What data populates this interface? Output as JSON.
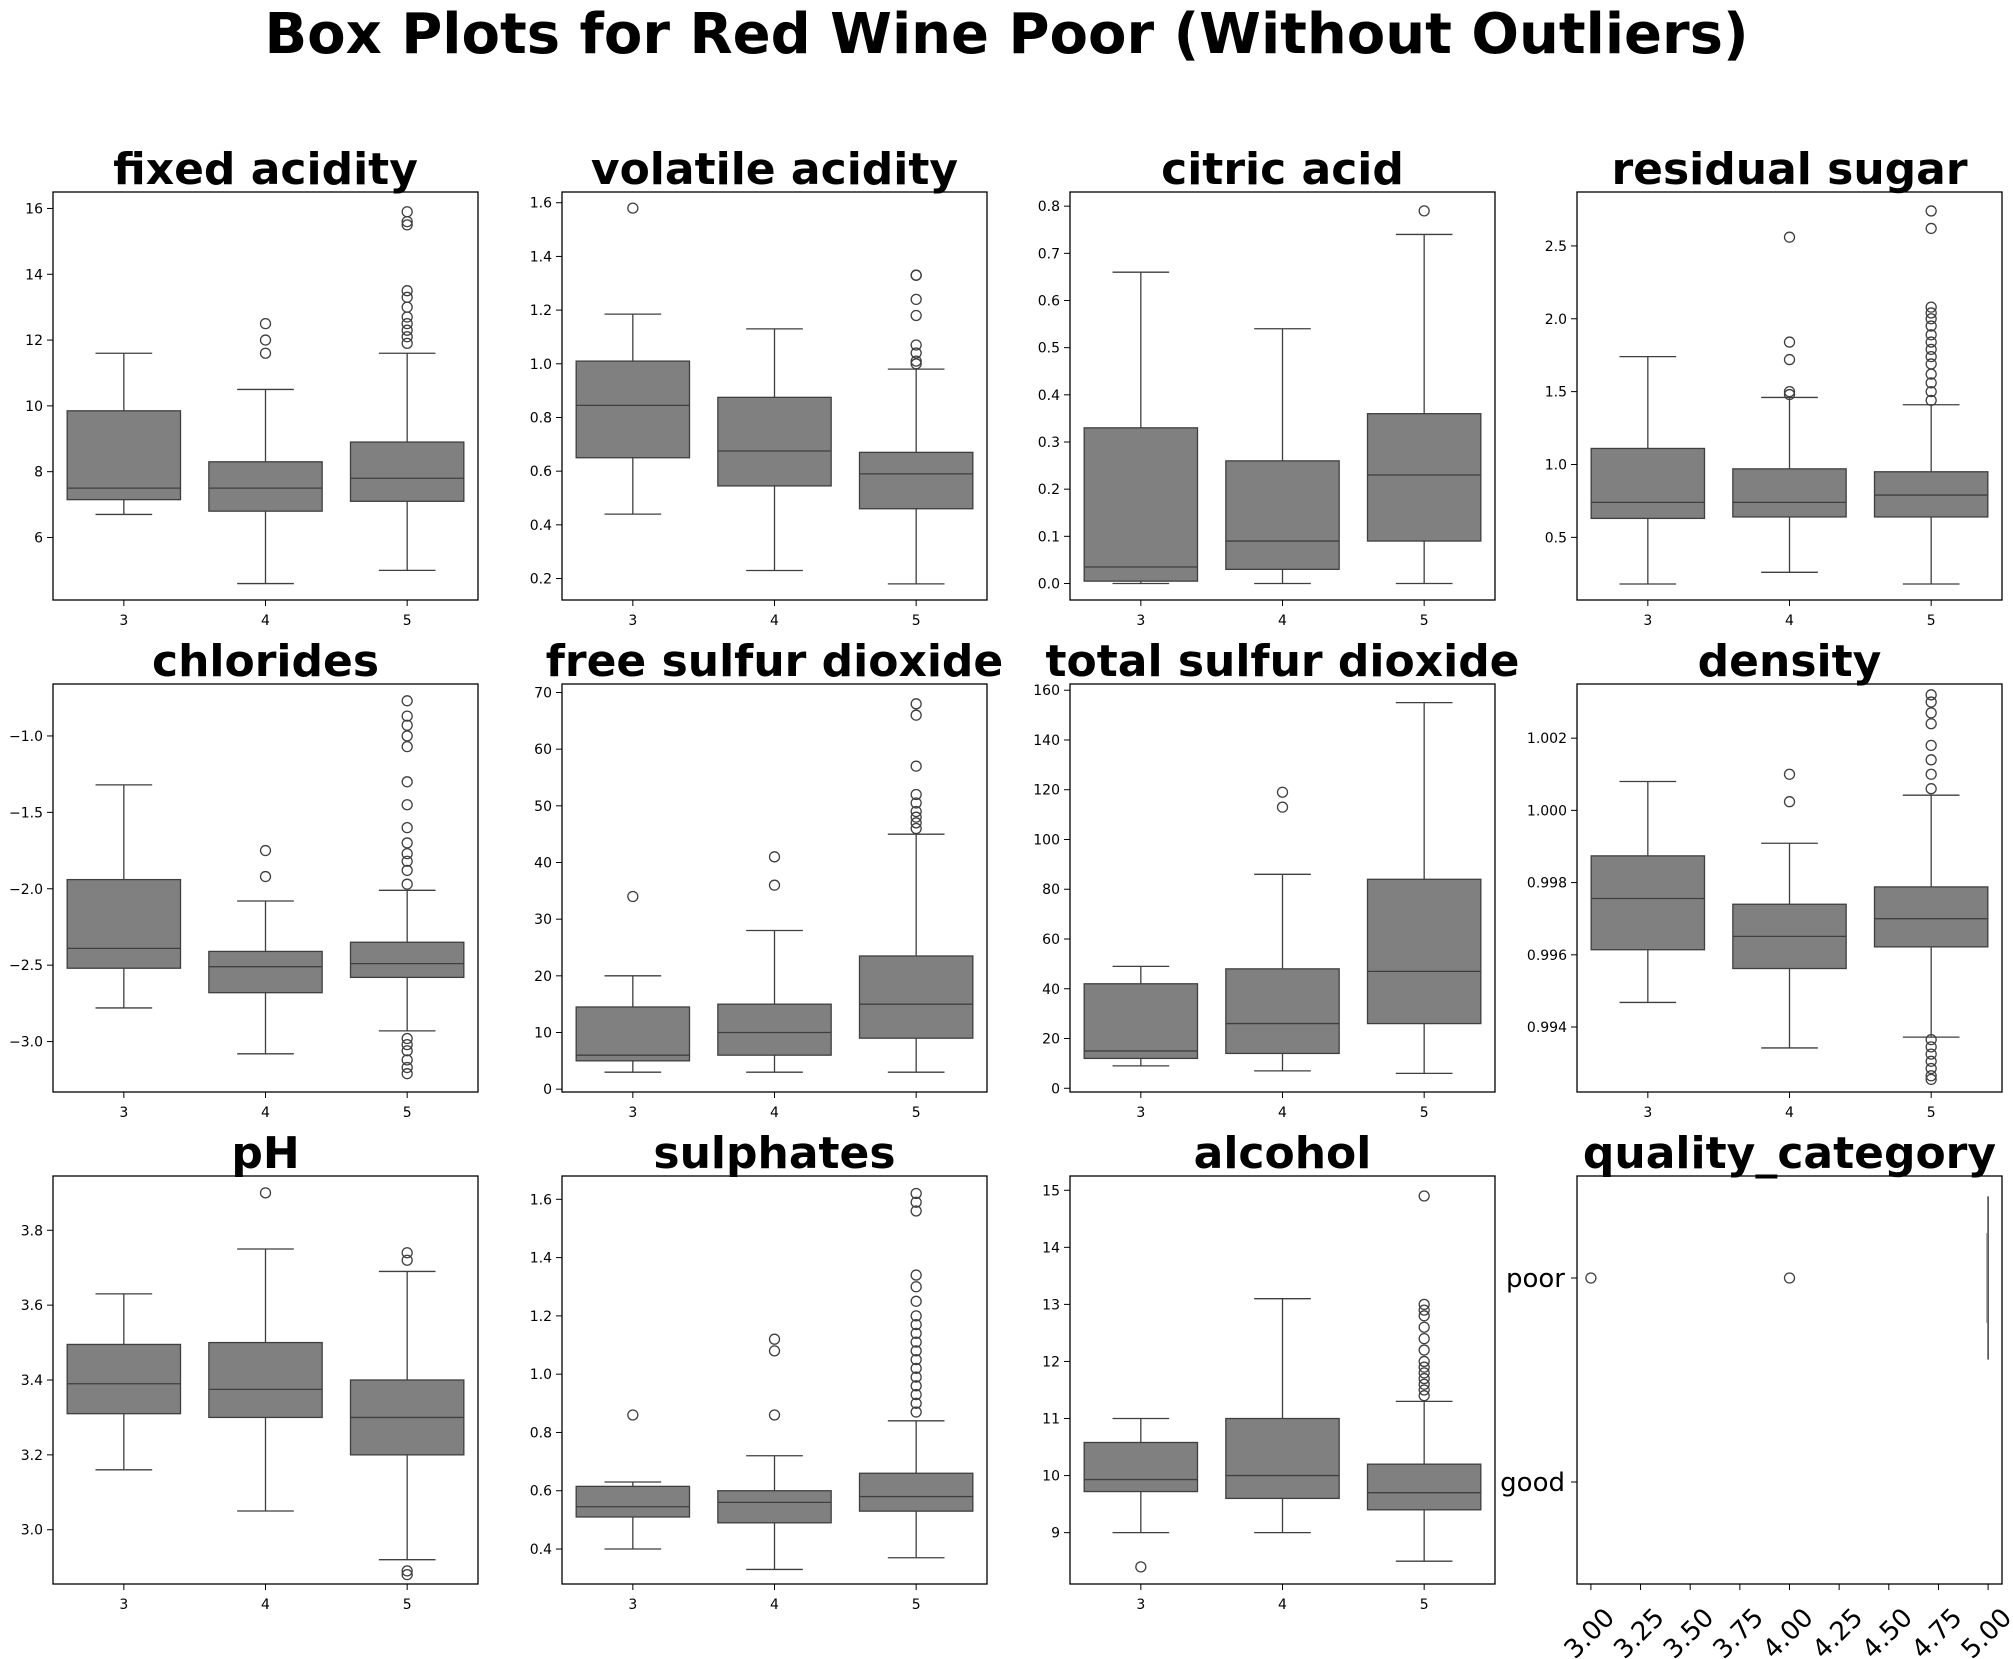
{
  "suptitle": "Box Plots for Red Wine Poor (Without Outliers)",
  "box_color": "#808080",
  "chart_data": [
    {
      "type": "box",
      "title": "fixed acidity",
      "categories": [
        "3",
        "4",
        "5"
      ],
      "ylim": [
        4.1,
        16.5
      ],
      "yticks": [
        6,
        8,
        10,
        12,
        14,
        16
      ],
      "yticklabels": [
        "6",
        "8",
        "10",
        "12",
        "14",
        "16"
      ],
      "boxes": [
        {
          "whislo": 6.7,
          "q1": 7.15,
          "med": 7.5,
          "q3": 9.85,
          "whishi": 11.6,
          "fliers": []
        },
        {
          "whislo": 4.6,
          "q1": 6.8,
          "med": 7.5,
          "q3": 8.3,
          "whishi": 10.5,
          "fliers": [
            11.6,
            12.0,
            12.5
          ]
        },
        {
          "whislo": 5.0,
          "q1": 7.1,
          "med": 7.8,
          "q3": 8.9,
          "whishi": 11.6,
          "fliers": [
            11.9,
            12.1,
            12.3,
            12.5,
            12.7,
            13.0,
            13.3,
            13.5,
            15.5,
            15.6,
            15.9
          ]
        }
      ]
    },
    {
      "type": "box",
      "title": "volatile acidity",
      "categories": [
        "3",
        "4",
        "5"
      ],
      "ylim": [
        0.12,
        1.64
      ],
      "yticks": [
        0.2,
        0.4,
        0.6,
        0.8,
        1.0,
        1.2,
        1.4,
        1.6
      ],
      "yticklabels": [
        "0.2",
        "0.4",
        "0.6",
        "0.8",
        "1.0",
        "1.2",
        "1.4",
        "1.6"
      ],
      "boxes": [
        {
          "whislo": 0.44,
          "q1": 0.65,
          "med": 0.845,
          "q3": 1.01,
          "whishi": 1.185,
          "fliers": [
            1.58
          ]
        },
        {
          "whislo": 0.23,
          "q1": 0.545,
          "med": 0.675,
          "q3": 0.875,
          "whishi": 1.13,
          "fliers": []
        },
        {
          "whislo": 0.18,
          "q1": 0.46,
          "med": 0.59,
          "q3": 0.67,
          "whishi": 0.98,
          "fliers": [
            1.0,
            1.01,
            1.04,
            1.07,
            1.18,
            1.24,
            1.33,
            1.33
          ]
        }
      ]
    },
    {
      "type": "box",
      "title": "citric acid",
      "categories": [
        "3",
        "4",
        "5"
      ],
      "ylim": [
        -0.035,
        0.83
      ],
      "yticks": [
        0.0,
        0.1,
        0.2,
        0.3,
        0.4,
        0.5,
        0.6,
        0.7,
        0.8
      ],
      "yticklabels": [
        "0.0",
        "0.1",
        "0.2",
        "0.3",
        "0.4",
        "0.5",
        "0.6",
        "0.7",
        "0.8"
      ],
      "boxes": [
        {
          "whislo": 0.0,
          "q1": 0.005,
          "med": 0.035,
          "q3": 0.33,
          "whishi": 0.66,
          "fliers": []
        },
        {
          "whislo": 0.0,
          "q1": 0.03,
          "med": 0.09,
          "q3": 0.26,
          "whishi": 0.54,
          "fliers": []
        },
        {
          "whislo": 0.0,
          "q1": 0.09,
          "med": 0.23,
          "q3": 0.36,
          "whishi": 0.74,
          "fliers": [
            0.79
          ]
        }
      ]
    },
    {
      "type": "box",
      "title": "residual sugar",
      "categories": [
        "3",
        "4",
        "5"
      ],
      "ylim": [
        0.07,
        2.87
      ],
      "yticks": [
        0.5,
        1.0,
        1.5,
        2.0,
        2.5
      ],
      "yticklabels": [
        "0.5",
        "1.0",
        "1.5",
        "2.0",
        "2.5"
      ],
      "boxes": [
        {
          "whislo": 0.18,
          "q1": 0.63,
          "med": 0.74,
          "q3": 1.11,
          "whishi": 1.74,
          "fliers": []
        },
        {
          "whislo": 0.26,
          "q1": 0.64,
          "med": 0.74,
          "q3": 0.97,
          "whishi": 1.46,
          "fliers": [
            1.48,
            1.5,
            1.72,
            1.84,
            2.56
          ]
        },
        {
          "whislo": 0.18,
          "q1": 0.64,
          "med": 0.79,
          "q3": 0.95,
          "whishi": 1.41,
          "fliers": [
            1.44,
            1.5,
            1.56,
            1.62,
            1.69,
            1.74,
            1.79,
            1.84,
            1.89,
            1.95,
            2.0,
            2.04,
            2.08,
            2.62,
            2.74
          ]
        }
      ]
    },
    {
      "type": "box",
      "title": "chlorides",
      "categories": [
        "3",
        "4",
        "5"
      ],
      "ylim": [
        -3.33,
        -0.66
      ],
      "yticks": [
        -3.0,
        -2.5,
        -2.0,
        -1.5,
        -1.0
      ],
      "yticklabels": [
        "−3.0",
        "−2.5",
        "−2.0",
        "−1.5",
        "−1.0"
      ],
      "boxes": [
        {
          "whislo": -2.78,
          "q1": -2.52,
          "med": -2.39,
          "q3": -1.94,
          "whishi": -1.32,
          "fliers": []
        },
        {
          "whislo": -3.08,
          "q1": -2.68,
          "med": -2.51,
          "q3": -2.41,
          "whishi": -2.08,
          "fliers": [
            -1.92,
            -1.75
          ]
        },
        {
          "whislo": -2.93,
          "q1": -2.58,
          "med": -2.49,
          "q3": -2.35,
          "whishi": -2.01,
          "fliers": [
            -3.21,
            -3.17,
            -3.12,
            -3.06,
            -3.02,
            -2.98,
            -1.97,
            -1.88,
            -1.82,
            -1.77,
            -1.7,
            -1.6,
            -1.45,
            -1.3,
            -1.07,
            -1.0,
            -0.93,
            -0.87,
            -0.77
          ]
        }
      ]
    },
    {
      "type": "box",
      "title": "free sulfur dioxide",
      "categories": [
        "3",
        "4",
        "5"
      ],
      "ylim": [
        -0.5,
        71.5
      ],
      "yticks": [
        0,
        10,
        20,
        30,
        40,
        50,
        60,
        70
      ],
      "yticklabels": [
        "0",
        "10",
        "20",
        "30",
        "40",
        "50",
        "60",
        "70"
      ],
      "boxes": [
        {
          "whislo": 3,
          "q1": 5,
          "med": 6,
          "q3": 14.5,
          "whishi": 20,
          "fliers": [
            34
          ]
        },
        {
          "whislo": 3,
          "q1": 6,
          "med": 10,
          "q3": 15,
          "whishi": 28,
          "fliers": [
            36,
            41
          ]
        },
        {
          "whislo": 3,
          "q1": 9,
          "med": 15,
          "q3": 23.5,
          "whishi": 45,
          "fliers": [
            46,
            47,
            48,
            49,
            50.5,
            52,
            57,
            66,
            68
          ]
        }
      ]
    },
    {
      "type": "box",
      "title": "total sulfur dioxide",
      "categories": [
        "3",
        "4",
        "5"
      ],
      "ylim": [
        -1.5,
        162.5
      ],
      "yticks": [
        0,
        20,
        40,
        60,
        80,
        100,
        120,
        140,
        160
      ],
      "yticklabels": [
        "0",
        "20",
        "40",
        "60",
        "80",
        "100",
        "120",
        "140",
        "160"
      ],
      "boxes": [
        {
          "whislo": 9,
          "q1": 12,
          "med": 15,
          "q3": 42,
          "whishi": 49,
          "fliers": []
        },
        {
          "whislo": 7,
          "q1": 14,
          "med": 26,
          "q3": 48,
          "whishi": 86,
          "fliers": [
            113,
            119
          ]
        },
        {
          "whislo": 6,
          "q1": 26,
          "med": 47,
          "q3": 84,
          "whishi": 155,
          "fliers": []
        }
      ]
    },
    {
      "type": "box",
      "title": "density",
      "categories": [
        "3",
        "4",
        "5"
      ],
      "ylim": [
        0.9922,
        1.0035
      ],
      "yticks": [
        0.994,
        0.996,
        0.998,
        1.0,
        1.002
      ],
      "yticklabels": [
        "0.994",
        "0.996",
        "0.998",
        "1.000",
        "1.002"
      ],
      "boxes": [
        {
          "whislo": 0.99468,
          "q1": 0.99614,
          "med": 0.99756,
          "q3": 0.99874,
          "whishi": 1.0008,
          "fliers": []
        },
        {
          "whislo": 0.99342,
          "q1": 0.99562,
          "med": 0.99651,
          "q3": 0.9974,
          "whishi": 0.99909,
          "fliers": [
            1.00024,
            1.001
          ]
        },
        {
          "whislo": 0.99372,
          "q1": 0.99622,
          "med": 0.997,
          "q3": 0.99788,
          "whishi": 1.00042,
          "fliers": [
            0.99255,
            0.99265,
            0.99285,
            0.99305,
            0.99325,
            0.99345,
            0.99365,
            1.0006,
            1.001,
            1.0014,
            1.0018,
            1.0024,
            1.0027,
            1.003,
            1.0032
          ]
        }
      ]
    },
    {
      "type": "box",
      "title": "pH",
      "categories": [
        "3",
        "4",
        "5"
      ],
      "ylim": [
        2.855,
        3.945
      ],
      "yticks": [
        3.0,
        3.2,
        3.4,
        3.6,
        3.8
      ],
      "yticklabels": [
        "3.0",
        "3.2",
        "3.4",
        "3.6",
        "3.8"
      ],
      "boxes": [
        {
          "whislo": 3.16,
          "q1": 3.31,
          "med": 3.39,
          "q3": 3.495,
          "whishi": 3.63,
          "fliers": []
        },
        {
          "whislo": 3.05,
          "q1": 3.3,
          "med": 3.375,
          "q3": 3.5,
          "whishi": 3.75,
          "fliers": [
            3.9
          ]
        },
        {
          "whislo": 2.92,
          "q1": 3.2,
          "med": 3.3,
          "q3": 3.4,
          "whishi": 3.69,
          "fliers": [
            2.88,
            2.89,
            3.72,
            3.74
          ]
        }
      ]
    },
    {
      "type": "box",
      "title": "sulphates",
      "categories": [
        "3",
        "4",
        "5"
      ],
      "ylim": [
        0.28,
        1.68
      ],
      "yticks": [
        0.4,
        0.6,
        0.8,
        1.0,
        1.2,
        1.4,
        1.6
      ],
      "yticklabels": [
        "0.4",
        "0.6",
        "0.8",
        "1.0",
        "1.2",
        "1.4",
        "1.6"
      ],
      "boxes": [
        {
          "whislo": 0.4,
          "q1": 0.51,
          "med": 0.545,
          "q3": 0.615,
          "whishi": 0.63,
          "fliers": [
            0.86
          ]
        },
        {
          "whislo": 0.33,
          "q1": 0.49,
          "med": 0.56,
          "q3": 0.6,
          "whishi": 0.72,
          "fliers": [
            0.86,
            1.08,
            1.12
          ]
        },
        {
          "whislo": 0.37,
          "q1": 0.53,
          "med": 0.58,
          "q3": 0.66,
          "whishi": 0.84,
          "fliers": [
            0.87,
            0.9,
            0.93,
            0.96,
            0.99,
            1.02,
            1.05,
            1.08,
            1.11,
            1.14,
            1.17,
            1.2,
            1.25,
            1.3,
            1.34,
            1.56,
            1.59,
            1.62
          ]
        }
      ]
    },
    {
      "type": "box",
      "title": "alcohol",
      "categories": [
        "3",
        "4",
        "5"
      ],
      "ylim": [
        8.1,
        15.25
      ],
      "yticks": [
        9,
        10,
        11,
        12,
        13,
        14,
        15
      ],
      "yticklabels": [
        "9",
        "10",
        "11",
        "12",
        "13",
        "14",
        "15"
      ],
      "boxes": [
        {
          "whislo": 9.0,
          "q1": 9.72,
          "med": 9.93,
          "q3": 10.58,
          "whishi": 11.0,
          "fliers": [
            8.4
          ]
        },
        {
          "whislo": 9.0,
          "q1": 9.6,
          "med": 10.0,
          "q3": 11.0,
          "whishi": 13.1,
          "fliers": []
        },
        {
          "whislo": 8.5,
          "q1": 9.4,
          "med": 9.7,
          "q3": 10.2,
          "whishi": 11.3,
          "fliers": [
            11.4,
            11.5,
            11.6,
            11.7,
            11.8,
            11.9,
            12.0,
            12.2,
            12.4,
            12.6,
            12.8,
            12.9,
            13.0,
            14.9
          ]
        }
      ]
    },
    {
      "type": "box",
      "title": "quality_category",
      "orientation": "horizontal",
      "categories": [
        "poor",
        "good"
      ],
      "xlim": [
        2.93,
        5.07
      ],
      "xticks": [
        3.0,
        3.25,
        3.5,
        3.75,
        4.0,
        4.25,
        4.5,
        4.75,
        5.0
      ],
      "xticklabels": [
        "3.00",
        "3.25",
        "3.50",
        "3.75",
        "4.00",
        "4.25",
        "4.50",
        "4.75",
        "5.00"
      ],
      "ylim": [
        -0.5,
        1.5
      ],
      "boxes": [
        {
          "category": "poor",
          "whislo": 5.0,
          "q1": 5.0,
          "med": 5.0,
          "q3": 5.0,
          "whishi": 5.0,
          "fliers": [
            3.0,
            4.0
          ]
        }
      ]
    }
  ]
}
